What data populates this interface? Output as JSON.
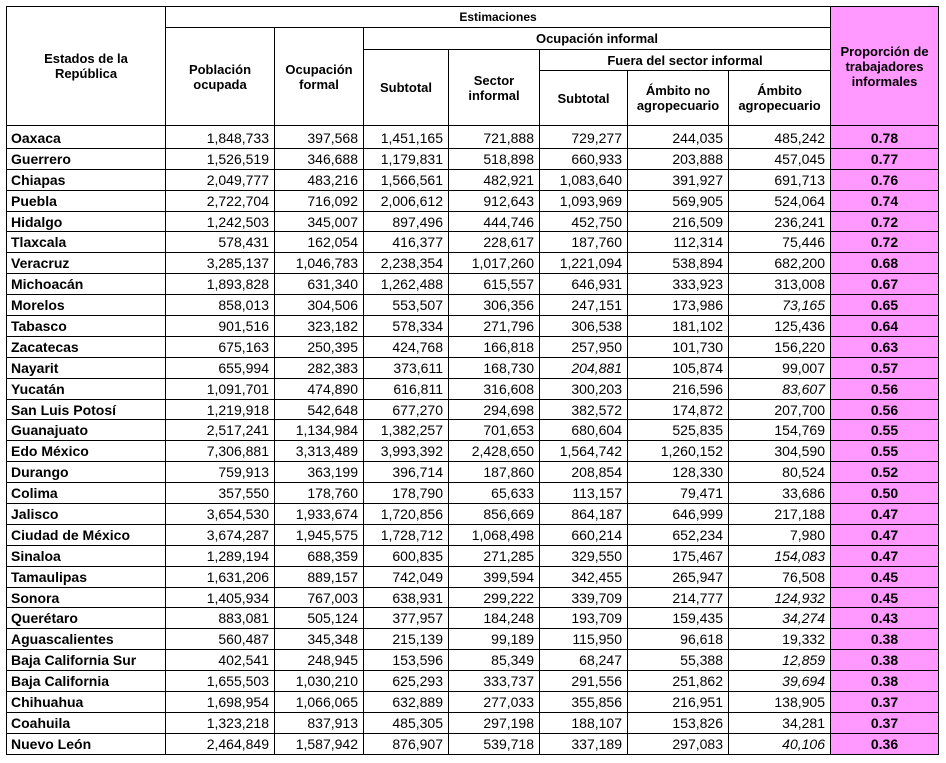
{
  "header": {
    "estados": "Estados de la República",
    "estimaciones": "Estimaciones",
    "poblacion": "Población ocupada",
    "ocupacion_formal": "Ocupación formal",
    "ocupacion_informal": "Ocupación informal",
    "subtotal": "Subtotal",
    "sector_informal": "Sector informal",
    "fuera_sector": "Fuera del sector informal",
    "subtotal2": "Subtotal",
    "ambito_no_agro": "Ámbito no agropecuario",
    "ambito_agro": "Ámbito agropecuario",
    "proporcion": "Proporción de trabajadores informales"
  },
  "rows": [
    {
      "estado": "Oaxaca",
      "poblacion": "1,848,733",
      "formal": "397,568",
      "subtotal": "1,451,165",
      "sector": "721,888",
      "fuera_subtotal": "729,277",
      "no_agro": "244,035",
      "agro": "485,242",
      "prop": "0.78"
    },
    {
      "estado": "Guerrero",
      "poblacion": "1,526,519",
      "formal": "346,688",
      "subtotal": "1,179,831",
      "sector": "518,898",
      "fuera_subtotal": "660,933",
      "no_agro": "203,888",
      "agro": "457,045",
      "prop": "0.77"
    },
    {
      "estado": "Chiapas",
      "poblacion": "2,049,777",
      "formal": "483,216",
      "subtotal": "1,566,561",
      "sector": "482,921",
      "fuera_subtotal": "1,083,640",
      "no_agro": "391,927",
      "agro": "691,713",
      "prop": "0.76"
    },
    {
      "estado": "Puebla",
      "poblacion": "2,722,704",
      "formal": "716,092",
      "subtotal": "2,006,612",
      "sector": "912,643",
      "fuera_subtotal": "1,093,969",
      "no_agro": "569,905",
      "agro": "524,064",
      "prop": "0.74"
    },
    {
      "estado": "Hidalgo",
      "poblacion": "1,242,503",
      "formal": "345,007",
      "subtotal": "897,496",
      "sector": "444,746",
      "fuera_subtotal": "452,750",
      "no_agro": "216,509",
      "agro": "236,241",
      "prop": "0.72"
    },
    {
      "estado": "Tlaxcala",
      "poblacion": "578,431",
      "formal": "162,054",
      "subtotal": "416,377",
      "sector": "228,617",
      "fuera_subtotal": "187,760",
      "no_agro": "112,314",
      "agro": "75,446",
      "prop": "0.72"
    },
    {
      "estado": "Veracruz",
      "poblacion": "3,285,137",
      "formal": "1,046,783",
      "subtotal": "2,238,354",
      "sector": "1,017,260",
      "fuera_subtotal": "1,221,094",
      "no_agro": "538,894",
      "agro": "682,200",
      "prop": "0.68"
    },
    {
      "estado": "Michoacán",
      "poblacion": "1,893,828",
      "formal": "631,340",
      "subtotal": "1,262,488",
      "sector": "615,557",
      "fuera_subtotal": "646,931",
      "no_agro": "333,923",
      "agro": "313,008",
      "prop": "0.67"
    },
    {
      "estado": "Morelos",
      "poblacion": "858,013",
      "formal": "304,506",
      "subtotal": "553,507",
      "sector": "306,356",
      "fuera_subtotal": "247,151",
      "no_agro": "173,986",
      "agro": "73,165",
      "agro_italic": true,
      "prop": "0.65"
    },
    {
      "estado": "Tabasco",
      "poblacion": "901,516",
      "formal": "323,182",
      "subtotal": "578,334",
      "sector": "271,796",
      "fuera_subtotal": "306,538",
      "no_agro": "181,102",
      "agro": "125,436",
      "prop": "0.64"
    },
    {
      "estado": "Zacatecas",
      "poblacion": "675,163",
      "formal": "250,395",
      "subtotal": "424,768",
      "sector": "166,818",
      "fuera_subtotal": "257,950",
      "no_agro": "101,730",
      "agro": "156,220",
      "prop": "0.63"
    },
    {
      "estado": "Nayarit",
      "poblacion": "655,994",
      "formal": "282,383",
      "subtotal": "373,611",
      "sector": "168,730",
      "fuera_subtotal": "204,881",
      "fuera_italic": true,
      "no_agro": "105,874",
      "agro": "99,007",
      "prop": "0.57"
    },
    {
      "estado": "Yucatán",
      "poblacion": "1,091,701",
      "formal": "474,890",
      "subtotal": "616,811",
      "sector": "316,608",
      "fuera_subtotal": "300,203",
      "no_agro": "216,596",
      "agro": "83,607",
      "agro_italic": true,
      "prop": "0.56"
    },
    {
      "estado": "San Luis Potosí",
      "poblacion": "1,219,918",
      "formal": "542,648",
      "subtotal": "677,270",
      "sector": "294,698",
      "fuera_subtotal": "382,572",
      "no_agro": "174,872",
      "agro": "207,700",
      "prop": "0.56"
    },
    {
      "estado": "Guanajuato",
      "poblacion": "2,517,241",
      "formal": "1,134,984",
      "subtotal": "1,382,257",
      "sector": "701,653",
      "fuera_subtotal": "680,604",
      "no_agro": "525,835",
      "agro": "154,769",
      "prop": "0.55"
    },
    {
      "estado": "Edo México",
      "poblacion": "7,306,881",
      "formal": "3,313,489",
      "subtotal": "3,993,392",
      "sector": "2,428,650",
      "fuera_subtotal": "1,564,742",
      "no_agro": "1,260,152",
      "agro": "304,590",
      "prop": "0.55"
    },
    {
      "estado": "Durango",
      "poblacion": "759,913",
      "formal": "363,199",
      "subtotal": "396,714",
      "sector": "187,860",
      "fuera_subtotal": "208,854",
      "no_agro": "128,330",
      "agro": "80,524",
      "prop": "0.52"
    },
    {
      "estado": "Colima",
      "poblacion": "357,550",
      "formal": "178,760",
      "subtotal": "178,790",
      "sector": "65,633",
      "fuera_subtotal": "113,157",
      "no_agro": "79,471",
      "agro": "33,686",
      "prop": "0.50"
    },
    {
      "estado": "Jalisco",
      "poblacion": "3,654,530",
      "formal": "1,933,674",
      "subtotal": "1,720,856",
      "sector": "856,669",
      "fuera_subtotal": "864,187",
      "no_agro": "646,999",
      "agro": "217,188",
      "prop": "0.47"
    },
    {
      "estado": "Ciudad de México",
      "poblacion": "3,674,287",
      "formal": "1,945,575",
      "subtotal": "1,728,712",
      "sector": "1,068,498",
      "fuera_subtotal": "660,214",
      "no_agro": "652,234",
      "agro": "7,980",
      "prop": "0.47"
    },
    {
      "estado": "Sinaloa",
      "poblacion": "1,289,194",
      "formal": "688,359",
      "subtotal": "600,835",
      "sector": "271,285",
      "fuera_subtotal": "329,550",
      "no_agro": "175,467",
      "agro": "154,083",
      "agro_italic": true,
      "prop": "0.47"
    },
    {
      "estado": "Tamaulipas",
      "poblacion": "1,631,206",
      "formal": "889,157",
      "subtotal": "742,049",
      "sector": "399,594",
      "fuera_subtotal": "342,455",
      "no_agro": "265,947",
      "agro": "76,508",
      "prop": "0.45"
    },
    {
      "estado": "Sonora",
      "poblacion": "1,405,934",
      "formal": "767,003",
      "subtotal": "638,931",
      "sector": "299,222",
      "fuera_subtotal": "339,709",
      "no_agro": "214,777",
      "agro": "124,932",
      "agro_italic": true,
      "prop": "0.45"
    },
    {
      "estado": "Querétaro",
      "poblacion": "883,081",
      "formal": "505,124",
      "subtotal": "377,957",
      "sector": "184,248",
      "fuera_subtotal": "193,709",
      "no_agro": "159,435",
      "agro": "34,274",
      "agro_italic": true,
      "prop": "0.43"
    },
    {
      "estado": "Aguascalientes",
      "poblacion": "560,487",
      "formal": "345,348",
      "subtotal": "215,139",
      "sector": "99,189",
      "fuera_subtotal": "115,950",
      "no_agro": "96,618",
      "agro": "19,332",
      "prop": "0.38"
    },
    {
      "estado": "Baja California Sur",
      "poblacion": "402,541",
      "formal": "248,945",
      "subtotal": "153,596",
      "sector": "85,349",
      "fuera_subtotal": "68,247",
      "no_agro": "55,388",
      "agro": "12,859",
      "agro_italic": true,
      "prop": "0.38"
    },
    {
      "estado": "Baja California",
      "poblacion": "1,655,503",
      "formal": "1,030,210",
      "subtotal": "625,293",
      "sector": "333,737",
      "fuera_subtotal": "291,556",
      "no_agro": "251,862",
      "agro": "39,694",
      "agro_italic": true,
      "prop": "0.38"
    },
    {
      "estado": "Chihuahua",
      "poblacion": "1,698,954",
      "formal": "1,066,065",
      "subtotal": "632,889",
      "sector": "277,033",
      "fuera_subtotal": "355,856",
      "no_agro": "216,951",
      "agro": "138,905",
      "prop": "0.37"
    },
    {
      "estado": "Coahuila",
      "poblacion": "1,323,218",
      "formal": "837,913",
      "subtotal": "485,305",
      "sector": "297,198",
      "fuera_subtotal": "188,107",
      "no_agro": "153,826",
      "agro": "34,281",
      "prop": "0.37"
    },
    {
      "estado": "Nuevo León",
      "poblacion": "2,464,849",
      "formal": "1,587,942",
      "subtotal": "876,907",
      "sector": "539,718",
      "fuera_subtotal": "337,189",
      "no_agro": "297,083",
      "agro": "40,106",
      "agro_italic": true,
      "prop": "0.36"
    }
  ],
  "colors": {
    "highlight": "#ff99ff",
    "border": "#000000"
  }
}
